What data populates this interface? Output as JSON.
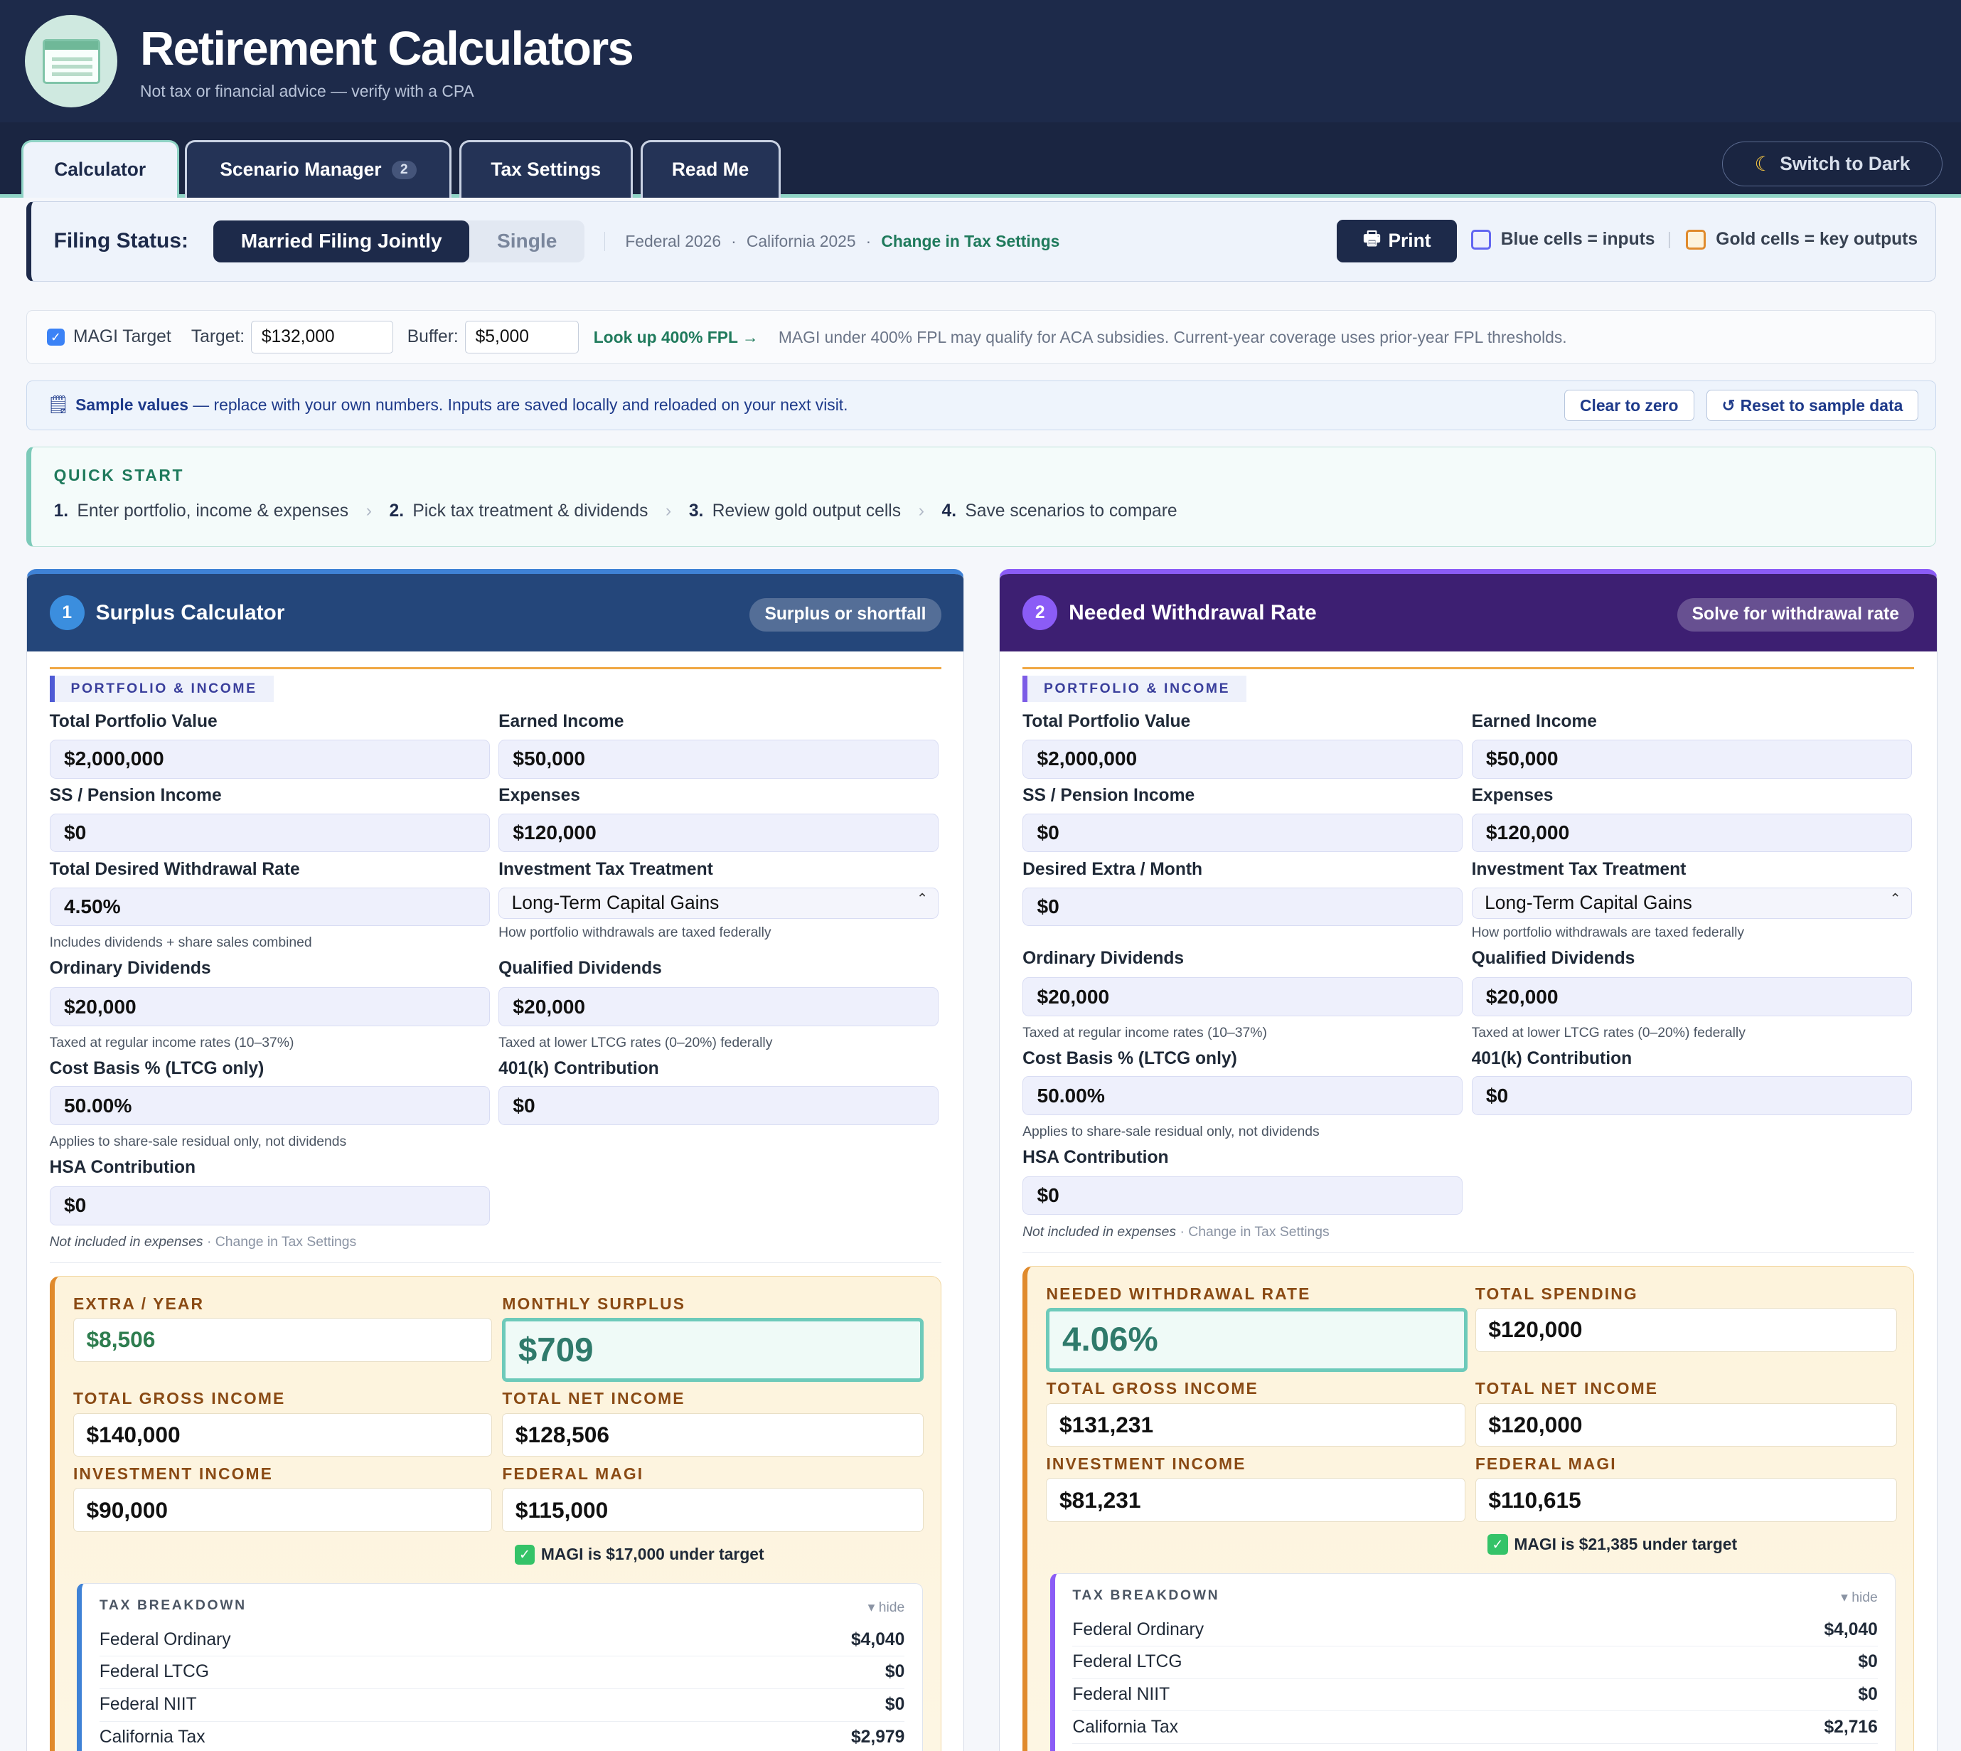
{
  "header": {
    "title": "Retirement Calculators",
    "subtitle": "Not tax or financial advice — verify with a CPA"
  },
  "tabs": [
    {
      "label": "Calculator"
    },
    {
      "label": "Scenario Manager",
      "badge": "2"
    },
    {
      "label": "Tax Settings"
    },
    {
      "label": "Read Me"
    }
  ],
  "dark_toggle": {
    "icon": "moon-icon",
    "label": "Switch to Dark"
  },
  "filing": {
    "label": "Filing Status:",
    "options": [
      "Married Filing Jointly",
      "Single"
    ],
    "selected": "Married Filing Jointly",
    "federal": "Federal 2026",
    "sep": "·",
    "state": "California 2025",
    "change_link": "Change in Tax Settings",
    "print_label": "Print",
    "legend_blue": "Blue cells = inputs",
    "legend_gold": "Gold cells = key outputs",
    "colors": {
      "blue": "#6366f1",
      "gold": "#e08a2c"
    }
  },
  "magi_target": {
    "checkbox_label": "MAGI Target",
    "checked": true,
    "target_label": "Target:",
    "target_value": "$132,000",
    "buffer_label": "Buffer:",
    "buffer_value": "$5,000",
    "lookup_link": "Look up 400% FPL →",
    "note": "MAGI under 400% FPL may qualify for ACA subsidies. Current-year coverage uses prior-year FPL thresholds."
  },
  "sample_bar": {
    "bold": "Sample values",
    "text": " — replace with your own numbers. Inputs are saved locally and reloaded on your next visit.",
    "clear_label": "Clear to zero",
    "reset_label": "Reset to sample data"
  },
  "quick_start": {
    "title": "QUICK START",
    "steps": [
      {
        "num": "1.",
        "text": "Enter portfolio, income & expenses"
      },
      {
        "num": "2.",
        "text": "Pick tax treatment & dividends"
      },
      {
        "num": "3.",
        "text": "Review gold output cells"
      },
      {
        "num": "4.",
        "text": "Save scenarios to compare"
      }
    ],
    "separator": "›"
  },
  "surplus": {
    "num": "1",
    "title": "Surplus Calculator",
    "pill": "Surplus or shortfall",
    "color": "#24467a",
    "section": "PORTFOLIO & INCOME",
    "portfolio_label": "Total Portfolio Value",
    "portfolio_value": "$2,000,000",
    "earned_label": "Earned Income",
    "earned_value": "$50,000",
    "ss_label": "SS / Pension Income",
    "ss_value": "$0",
    "expenses_label": "Expenses",
    "expenses_value": "$120,000",
    "rate_label": "Total Desired Withdrawal Rate",
    "rate_value": "4.50%",
    "rate_help": "Includes dividends + share sales combined",
    "treatment_label": "Investment Tax Treatment",
    "treatment_value": "Long-Term Capital Gains",
    "treatment_help": "How portfolio withdrawals are taxed federally",
    "ord_label": "Ordinary Dividends",
    "ord_value": "$20,000",
    "ord_help": "Taxed at regular income rates (10–37%)",
    "qual_label": "Qualified Dividends",
    "qual_value": "$20,000",
    "qual_help": "Taxed at lower LTCG rates (0–20%) federally",
    "basis_label": "Cost Basis % (LTCG only)",
    "basis_value": "50.00%",
    "basis_help": "Applies to share-sale residual only, not dividends",
    "k401_label": "401(k) Contribution",
    "k401_value": "$0",
    "hsa_label": "HSA Contribution",
    "hsa_value": "$0",
    "hsa_help_italic": "Not included in expenses",
    "hsa_help_link": " · Change in Tax Settings",
    "out": {
      "extra_label": "EXTRA / YEAR",
      "extra_value": "$8,506",
      "surplus_label": "MONTHLY SURPLUS",
      "surplus_value": "$709",
      "gross_label": "TOTAL GROSS INCOME",
      "gross_value": "$140,000",
      "net_label": "TOTAL NET INCOME",
      "net_value": "$128,506",
      "inv_label": "INVESTMENT INCOME",
      "inv_value": "$90,000",
      "magi_label": "FEDERAL MAGI",
      "magi_value": "$115,000",
      "magi_note": "MAGI is $17,000 under target"
    },
    "tax": {
      "title": "TAX BREAKDOWN",
      "hide": "▾ hide",
      "rows": [
        {
          "label": "Federal Ordinary",
          "value": "$4,040"
        },
        {
          "label": "Federal LTCG",
          "value": "$0"
        },
        {
          "label": "Federal NIIT",
          "value": "$0"
        },
        {
          "label": "California Tax",
          "value": "$2,979"
        }
      ]
    }
  },
  "withdrawal": {
    "num": "2",
    "title": "Needed Withdrawal Rate",
    "pill": "Solve for withdrawal rate",
    "color": "#3d1f72",
    "section": "PORTFOLIO & INCOME",
    "portfolio_label": "Total Portfolio Value",
    "portfolio_value": "$2,000,000",
    "earned_label": "Earned Income",
    "earned_value": "$50,000",
    "ss_label": "SS / Pension Income",
    "ss_value": "$0",
    "expenses_label": "Expenses",
    "expenses_value": "$120,000",
    "extra_label": "Desired Extra / Month",
    "extra_value": "$0",
    "treatment_label": "Investment Tax Treatment",
    "treatment_value": "Long-Term Capital Gains",
    "treatment_help": "How portfolio withdrawals are taxed federally",
    "ord_label": "Ordinary Dividends",
    "ord_value": "$20,000",
    "ord_help": "Taxed at regular income rates (10–37%)",
    "qual_label": "Qualified Dividends",
    "qual_value": "$20,000",
    "qual_help": "Taxed at lower LTCG rates (0–20%) federally",
    "basis_label": "Cost Basis % (LTCG only)",
    "basis_value": "50.00%",
    "basis_help": "Applies to share-sale residual only, not dividends",
    "k401_label": "401(k) Contribution",
    "k401_value": "$0",
    "hsa_label": "HSA Contribution",
    "hsa_value": "$0",
    "hsa_help_italic": "Not included in expenses",
    "hsa_help_link": " · Change in Tax Settings",
    "out": {
      "rate_label": "NEEDED WITHDRAWAL RATE",
      "rate_value": "4.06%",
      "spend_label": "TOTAL SPENDING",
      "spend_value": "$120,000",
      "gross_label": "TOTAL GROSS INCOME",
      "gross_value": "$131,231",
      "net_label": "TOTAL NET INCOME",
      "net_value": "$120,000",
      "inv_label": "INVESTMENT INCOME",
      "inv_value": "$81,231",
      "magi_label": "FEDERAL MAGI",
      "magi_value": "$110,615",
      "magi_note": "MAGI is $21,385 under target"
    },
    "tax": {
      "title": "TAX BREAKDOWN",
      "hide": "▾ hide",
      "rows": [
        {
          "label": "Federal Ordinary",
          "value": "$4,040"
        },
        {
          "label": "Federal LTCG",
          "value": "$0"
        },
        {
          "label": "Federal NIIT",
          "value": "$0"
        },
        {
          "label": "California Tax",
          "value": "$2,716"
        }
      ]
    }
  }
}
